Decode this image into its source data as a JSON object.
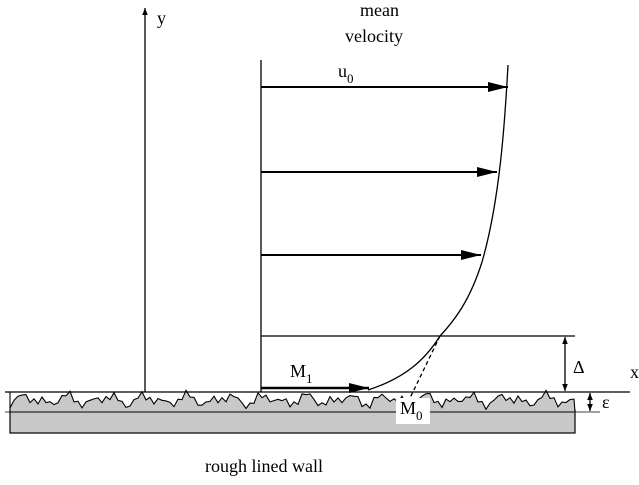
{
  "axes": {
    "y": "y",
    "x": "x"
  },
  "profile_label": [
    "mean",
    "velocity"
  ],
  "labels": {
    "u0": {
      "base": "u",
      "sub": "0"
    },
    "M1": {
      "base": "M",
      "sub": "1"
    },
    "M0": {
      "base": "M",
      "sub": "0"
    },
    "delta": "Δ",
    "epsilon": "ε"
  },
  "caption": "rough lined wall"
}
